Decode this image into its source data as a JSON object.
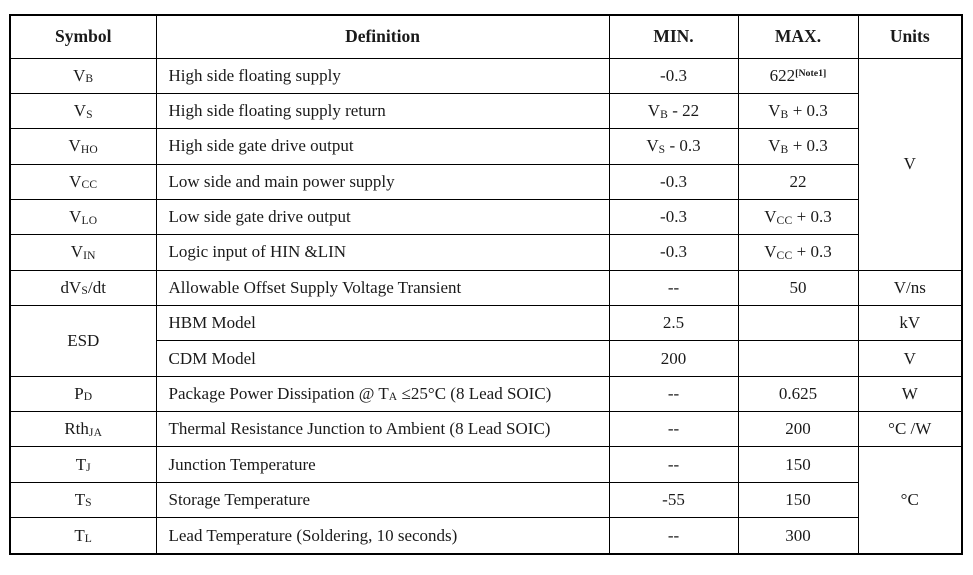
{
  "colors": {
    "border": "#000000",
    "text": "#1a1a1a",
    "background": "#ffffff"
  },
  "table": {
    "header": {
      "symbol": "Symbol",
      "definition": "Definition",
      "min": "MIN.",
      "max": "MAX.",
      "units": "Units"
    },
    "rows": [
      {
        "symbol": {
          "pre": "V",
          "sub": "B"
        },
        "definition": {
          "pre": "High side floating supply"
        },
        "min": {
          "pre": "-0.3"
        },
        "max": {
          "pre": "622",
          "sup": "[Note1]"
        },
        "units": "V",
        "units_rowspan": 6
      },
      {
        "symbol": {
          "pre": "V",
          "sub": "S"
        },
        "definition": {
          "pre": "High side floating supply return"
        },
        "min": {
          "pre": "V",
          "sub": "B",
          "post": " - 22"
        },
        "max": {
          "pre": "V",
          "sub": "B",
          "post": " + 0.3"
        }
      },
      {
        "symbol": {
          "pre": "V",
          "sub": "HO"
        },
        "definition": {
          "pre": "High side gate drive output"
        },
        "min": {
          "pre": "V",
          "sub": "S",
          "post": " - 0.3"
        },
        "max": {
          "pre": "V",
          "sub": "B",
          "post": " + 0.3"
        }
      },
      {
        "symbol": {
          "pre": "V",
          "sub": "CC"
        },
        "definition": {
          "pre": "Low side and main power supply"
        },
        "min": {
          "pre": "-0.3"
        },
        "max": {
          "pre": "22"
        }
      },
      {
        "symbol": {
          "pre": "V",
          "sub": "LO"
        },
        "definition": {
          "pre": "Low side gate drive output"
        },
        "min": {
          "pre": "-0.3"
        },
        "max": {
          "pre": "V",
          "sub": "CC",
          "post": " + 0.3"
        }
      },
      {
        "symbol": {
          "pre": "V",
          "sub": "IN"
        },
        "definition": {
          "pre": "Logic input of HIN &LIN"
        },
        "min": {
          "pre": "-0.3"
        },
        "max": {
          "pre": "V",
          "sub": "CC",
          "post": " + 0.3"
        }
      },
      {
        "symbol": {
          "pre": "dV",
          "sub": "S",
          "post": "/dt"
        },
        "definition": {
          "pre": "Allowable Offset Supply Voltage Transient"
        },
        "min": {
          "pre": "--"
        },
        "max": {
          "pre": "50"
        },
        "units": "V/ns"
      },
      {
        "symbol": {
          "pre": "ESD"
        },
        "symbol_rowspan": 2,
        "definition": {
          "pre": "HBM Model"
        },
        "min": {
          "pre": "2.5"
        },
        "max": {},
        "units": "kV"
      },
      {
        "definition": {
          "pre": "CDM Model"
        },
        "min": {
          "pre": "200"
        },
        "max": {},
        "units": "V"
      },
      {
        "symbol": {
          "pre": "P",
          "sub": "D"
        },
        "definition": {
          "pre": "Package Power Dissipation @ T",
          "sub": "A",
          "post": " ≤25°C (8 Lead SOIC)"
        },
        "min": {
          "pre": "--"
        },
        "max": {
          "pre": "0.625"
        },
        "units": "W"
      },
      {
        "symbol": {
          "pre": "Rth",
          "sub": "JA"
        },
        "definition": {
          "pre": "Thermal Resistance Junction to Ambient (8 Lead SOIC)"
        },
        "min": {
          "pre": "--"
        },
        "max": {
          "pre": "200"
        },
        "units": "°C /W"
      },
      {
        "symbol": {
          "pre": "T",
          "sub": "J"
        },
        "definition": {
          "pre": "Junction Temperature"
        },
        "min": {
          "pre": "--"
        },
        "max": {
          "pre": "150"
        },
        "units": "°C",
        "units_rowspan": 3
      },
      {
        "symbol": {
          "pre": "T",
          "sub": "S"
        },
        "definition": {
          "pre": "Storage Temperature"
        },
        "min": {
          "pre": "-55"
        },
        "max": {
          "pre": "150"
        }
      },
      {
        "symbol": {
          "pre": "T",
          "sub": "L"
        },
        "definition": {
          "pre": "Lead Temperature (Soldering, 10 seconds)"
        },
        "min": {
          "pre": "--"
        },
        "max": {
          "pre": "300"
        }
      }
    ]
  }
}
